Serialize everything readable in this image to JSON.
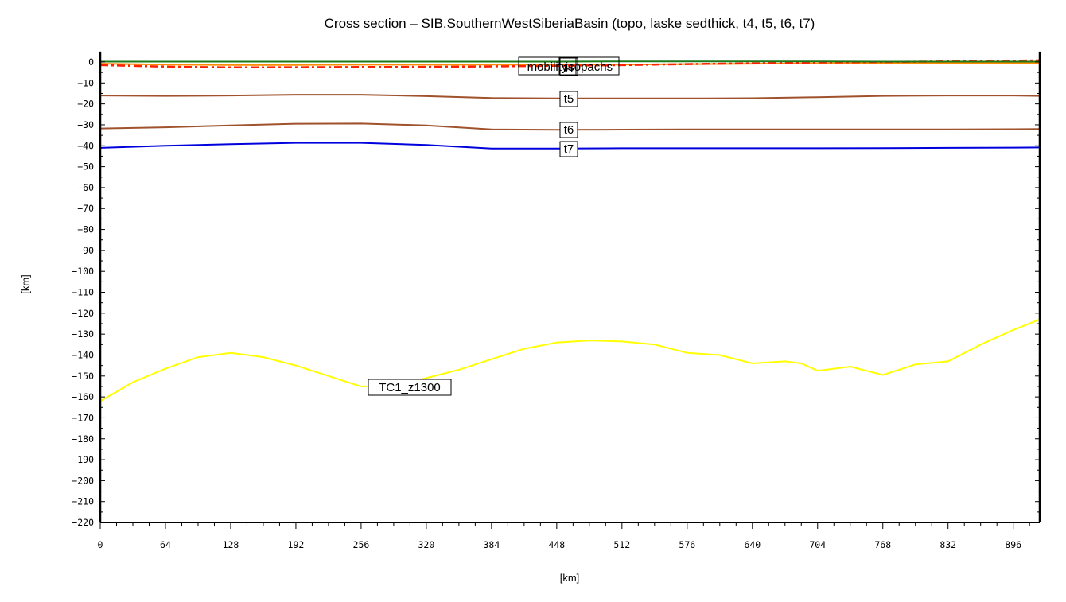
{
  "title": "Cross section – SIB.SouthernWestSiberiaBasin (topo, laske sedthick, t4, t5, t6, t7)",
  "xlabel": "[km]",
  "ylabel": "[km]",
  "colors": {
    "topo": "#1a7a1a",
    "sedthick": "#ff2000",
    "t4": "#ff8c00",
    "t5": "#a0522d",
    "t6": "#a0522d",
    "t7": "#0000dd",
    "tc1": "#ffff00",
    "axis": "#000000"
  },
  "chart_data": {
    "type": "line",
    "title": "Cross section – SIB.SouthernWestSiberiaBasin (topo, laske sedthick, t4, t5, t6, t7)",
    "xlabel": "[km]",
    "ylabel": "[km]",
    "xlim": [
      0,
      922
    ],
    "ylim": [
      -220,
      5
    ],
    "grid": false,
    "legend": "inline labels",
    "x_ticks": [
      0,
      64,
      128,
      192,
      256,
      320,
      384,
      448,
      512,
      576,
      640,
      704,
      768,
      832,
      896
    ],
    "y_ticks": [
      0,
      -10,
      -20,
      -30,
      -40,
      -50,
      -60,
      -70,
      -80,
      -90,
      -100,
      -110,
      -120,
      -130,
      -140,
      -150,
      -160,
      -170,
      -180,
      -190,
      -200,
      -210,
      -220
    ],
    "annotations": [
      {
        "text": "mobility",
        "x": 470,
        "y": -2
      },
      {
        "text": "t4",
        "x": 460,
        "y": -2
      },
      {
        "text": "isopachs",
        "x": 490,
        "y": -2
      },
      {
        "text": "t5",
        "x": 460,
        "y": -18
      },
      {
        "text": "t6",
        "x": 460,
        "y": -33
      },
      {
        "text": "t7",
        "x": 460,
        "y": -42
      },
      {
        "text": "TC1_z1300",
        "x": 305,
        "y": -156
      }
    ],
    "series": [
      {
        "name": "topo",
        "style": "solid",
        "color": "#1a7a1a",
        "x": [
          0,
          64,
          128,
          192,
          256,
          320,
          384,
          448,
          512,
          576,
          640,
          704,
          768,
          832,
          896,
          922
        ],
        "y": [
          0.2,
          0.2,
          0.2,
          0.2,
          0.2,
          0.2,
          0.2,
          0.2,
          0.3,
          0.3,
          0.3,
          0.3,
          0.2,
          0.2,
          0.2,
          0.2
        ]
      },
      {
        "name": "laske sedthick",
        "style": "dash-dot",
        "color": "#ff2000",
        "x": [
          0,
          64,
          128,
          192,
          256,
          320,
          384,
          448,
          512,
          576,
          640,
          704,
          768,
          832,
          896,
          922
        ],
        "y": [
          -1.5,
          -2.2,
          -2.6,
          -2.5,
          -2.4,
          -2.3,
          -2.1,
          -1.8,
          -1.5,
          -1.0,
          -0.6,
          -0.2,
          0.0,
          0.3,
          0.6,
          0.8
        ]
      },
      {
        "name": "t4",
        "style": "solid",
        "color": "#ff8c00",
        "x": [
          0,
          64,
          128,
          192,
          256,
          320,
          384,
          448,
          512,
          576,
          640,
          704,
          768,
          832,
          896,
          922
        ],
        "y": [
          -0.8,
          -1.2,
          -1.4,
          -1.4,
          -1.3,
          -1.3,
          -1.2,
          -1.2,
          -1.2,
          -1.0,
          -0.8,
          -0.6,
          -0.4,
          -0.4,
          -0.5,
          -0.6
        ]
      },
      {
        "name": "t5",
        "style": "solid",
        "color": "#a0522d",
        "x": [
          0,
          64,
          128,
          192,
          256,
          320,
          384,
          448,
          512,
          576,
          640,
          704,
          768,
          832,
          896,
          922
        ],
        "y": [
          -16,
          -16.2,
          -16,
          -15.6,
          -15.6,
          -16.3,
          -17.2,
          -17.4,
          -17.4,
          -17.4,
          -17.3,
          -16.8,
          -16.2,
          -16,
          -16,
          -16.2
        ]
      },
      {
        "name": "t6",
        "style": "solid",
        "color": "#a0522d",
        "x": [
          0,
          64,
          128,
          192,
          256,
          320,
          384,
          448,
          512,
          576,
          640,
          704,
          768,
          832,
          896,
          922
        ],
        "y": [
          -31.8,
          -31.2,
          -30.3,
          -29.5,
          -29.4,
          -30.3,
          -32.2,
          -32.4,
          -32.3,
          -32.2,
          -32.2,
          -32.2,
          -32.2,
          -32.2,
          -32.1,
          -32
        ]
      },
      {
        "name": "t7",
        "style": "solid",
        "color": "#0000dd",
        "x": [
          0,
          64,
          128,
          192,
          256,
          320,
          384,
          448,
          512,
          576,
          640,
          704,
          768,
          832,
          896,
          922
        ],
        "y": [
          -41,
          -40,
          -39.2,
          -38.6,
          -38.6,
          -39.6,
          -41.3,
          -41.3,
          -41.2,
          -41.2,
          -41.2,
          -41.2,
          -41.1,
          -41.0,
          -40.9,
          -40.8
        ]
      },
      {
        "name": "TC1_z1300",
        "style": "solid",
        "color": "#ffff00",
        "x": [
          0,
          32,
          64,
          96,
          128,
          160,
          192,
          224,
          256,
          288,
          320,
          352,
          384,
          416,
          448,
          480,
          512,
          544,
          576,
          608,
          640,
          672,
          688,
          704,
          736,
          768,
          800,
          832,
          864,
          896,
          922
        ],
        "y": [
          -162,
          -153,
          -146.5,
          -141,
          -139,
          -141,
          -145,
          -150,
          -155,
          -154.5,
          -151,
          -147,
          -142,
          -137,
          -134,
          -133,
          -133.5,
          -135,
          -139,
          -140,
          -144,
          -143,
          -144,
          -147.5,
          -145.5,
          -149.5,
          -144.5,
          -143,
          -135,
          -128,
          -123
        ]
      }
    ]
  }
}
